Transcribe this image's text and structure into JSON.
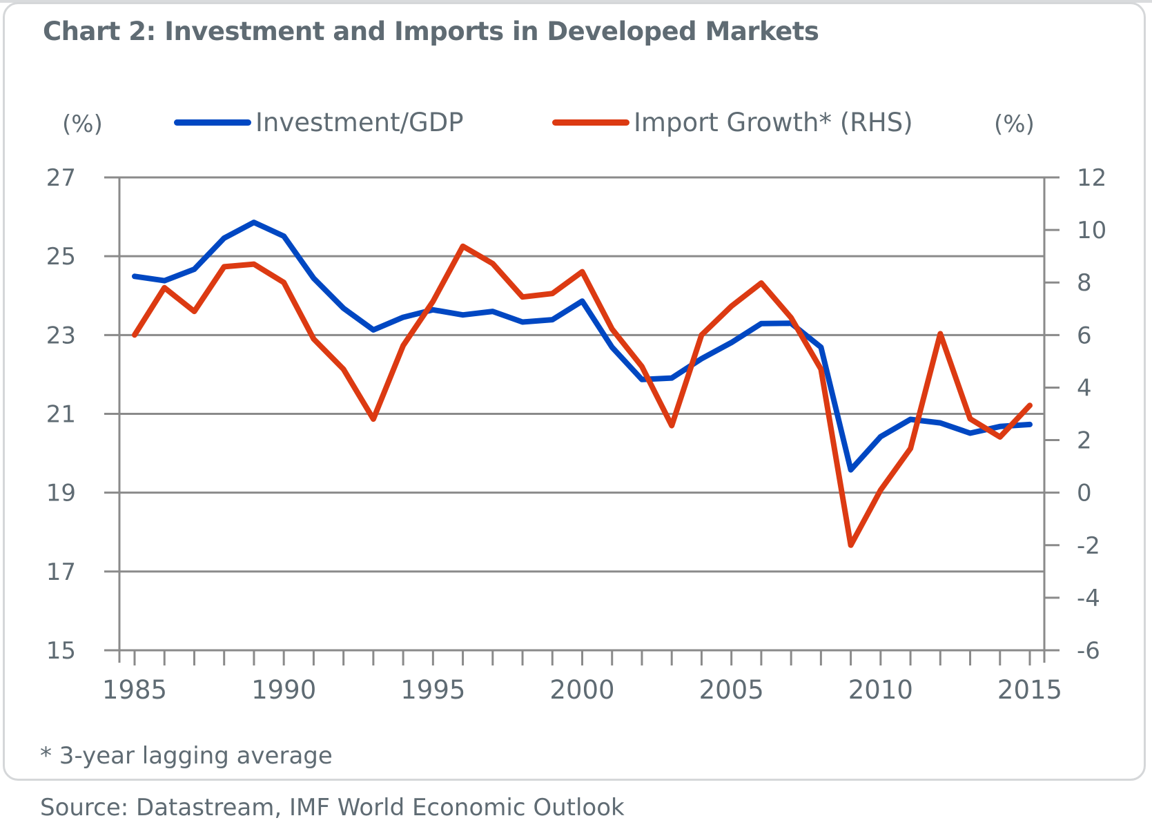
{
  "chart_data": {
    "type": "line",
    "title": "Chart 2: Investment and Imports in Developed Markets",
    "left_unit": "(%)",
    "right_unit": "(%)",
    "footnote": "* 3-year lagging average",
    "source": "Source: Datastream, IMF World Economic Outlook",
    "legend_placement": "top",
    "grid": true,
    "x": [
      1985,
      1986,
      1987,
      1988,
      1989,
      1990,
      1991,
      1992,
      1993,
      1994,
      1995,
      1996,
      1997,
      1998,
      1999,
      2000,
      2001,
      2002,
      2003,
      2004,
      2005,
      2006,
      2007,
      2008,
      2009,
      2010,
      2011,
      2012,
      2013,
      2014,
      2015
    ],
    "xlim": [
      1985,
      2015
    ],
    "xticks": [
      "1985",
      "1990",
      "1995",
      "2000",
      "2005",
      "2010",
      "2015"
    ],
    "ylim_left": [
      15,
      27
    ],
    "yticks_left": [
      "27",
      "25",
      "23",
      "21",
      "19",
      "17",
      "15"
    ],
    "ylim_right": [
      -6,
      12
    ],
    "yticks_right": [
      "12",
      "10",
      "8",
      "6",
      "4",
      "2",
      "0",
      "-2",
      "-4",
      "-6"
    ],
    "series": [
      {
        "name": "Investment/GDP",
        "axis": "left",
        "color": "#0047c2",
        "values": [
          24.49,
          24.38,
          24.67,
          25.46,
          25.86,
          25.51,
          24.44,
          23.68,
          23.13,
          23.45,
          23.64,
          23.51,
          23.6,
          23.33,
          23.39,
          23.86,
          22.69,
          21.87,
          21.91,
          22.4,
          22.81,
          23.29,
          23.3,
          22.69,
          19.58,
          20.42,
          20.86,
          20.77,
          20.51,
          20.68,
          20.73
        ]
      },
      {
        "name": "Import Growth* (RHS)",
        "axis": "right",
        "color": "#dc3a12",
        "values": [
          6.0,
          7.8,
          6.9,
          8.6,
          8.7,
          8.0,
          5.85,
          4.7,
          2.8,
          5.6,
          7.28,
          9.38,
          8.72,
          7.45,
          7.58,
          8.41,
          6.23,
          4.8,
          2.55,
          6.0,
          7.1,
          7.98,
          6.66,
          4.7,
          -2.0,
          0.1,
          1.68,
          6.05,
          2.81,
          2.12,
          3.32
        ]
      }
    ]
  }
}
